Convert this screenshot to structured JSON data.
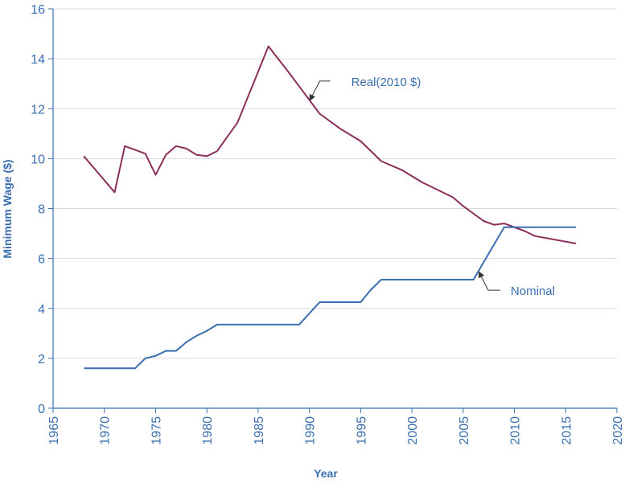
{
  "chart_data": {
    "type": "line",
    "title": "",
    "xlabel": "Year",
    "ylabel": "Minimum Wage ($)",
    "xlim": [
      1965,
      2020
    ],
    "ylim": [
      0,
      16
    ],
    "xticks": [
      1965,
      1970,
      1975,
      1980,
      1985,
      1990,
      1995,
      2000,
      2005,
      2010,
      2015,
      2020
    ],
    "yticks": [
      0,
      2,
      4,
      6,
      8,
      10,
      12,
      14,
      16
    ],
    "grid": "horizontal",
    "colors": {
      "axis_text": "#3b6fb0",
      "grid": "#d9d9d9",
      "annotation_arrow": "#333333"
    },
    "series": [
      {
        "name": "Real(2010 $)",
        "color": "#8b2f5a",
        "points": [
          [
            1968,
            10.1
          ],
          [
            1971,
            8.65
          ],
          [
            1972,
            10.5
          ],
          [
            1974,
            10.2
          ],
          [
            1975,
            9.35
          ],
          [
            1976,
            10.15
          ],
          [
            1977,
            10.5
          ],
          [
            1978,
            10.4
          ],
          [
            1979,
            10.15
          ],
          [
            1980,
            10.1
          ],
          [
            1981,
            10.3
          ],
          [
            1983,
            11.45
          ],
          [
            1986,
            14.5
          ],
          [
            1988,
            13.45
          ],
          [
            1991,
            11.8
          ],
          [
            1993,
            11.2
          ],
          [
            1995,
            10.7
          ],
          [
            1997,
            9.9
          ],
          [
            1999,
            9.55
          ],
          [
            2001,
            9.05
          ],
          [
            2004,
            8.45
          ],
          [
            2005,
            8.1
          ],
          [
            2007,
            7.5
          ],
          [
            2008,
            7.35
          ],
          [
            2009,
            7.4
          ],
          [
            2011,
            7.1
          ],
          [
            2012,
            6.9
          ],
          [
            2016,
            6.6
          ]
        ]
      },
      {
        "name": "Nominal",
        "color": "#3a6eb0",
        "points": [
          [
            1968,
            1.6
          ],
          [
            1971,
            1.6
          ],
          [
            1972,
            1.6
          ],
          [
            1973,
            1.6
          ],
          [
            1974,
            2.0
          ],
          [
            1975,
            2.1
          ],
          [
            1976,
            2.3
          ],
          [
            1977,
            2.3
          ],
          [
            1978,
            2.65
          ],
          [
            1979,
            2.9
          ],
          [
            1980,
            3.1
          ],
          [
            1981,
            3.35
          ],
          [
            1985,
            3.35
          ],
          [
            1988,
            3.35
          ],
          [
            1989,
            3.35
          ],
          [
            1990,
            3.8
          ],
          [
            1991,
            4.25
          ],
          [
            1994,
            4.25
          ],
          [
            1995,
            4.25
          ],
          [
            1996,
            4.75
          ],
          [
            1997,
            5.15
          ],
          [
            2000,
            5.15
          ],
          [
            2005,
            5.15
          ],
          [
            2006,
            5.15
          ],
          [
            2007,
            5.85
          ],
          [
            2008,
            6.55
          ],
          [
            2009,
            7.25
          ],
          [
            2012,
            7.25
          ],
          [
            2016,
            7.25
          ]
        ]
      }
    ],
    "annotations": [
      {
        "text": "Real(2010 $)",
        "series": 0,
        "points_to": [
          1990,
          12.3
        ]
      },
      {
        "text": "Nominal",
        "series": 1,
        "points_to": [
          2006.5,
          5.5
        ]
      }
    ]
  }
}
